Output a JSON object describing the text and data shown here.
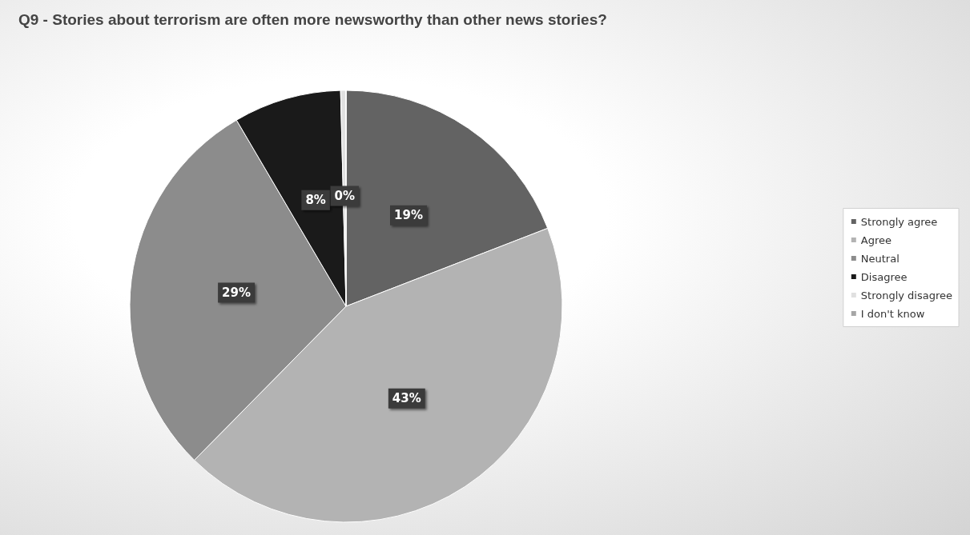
{
  "chart_data": {
    "type": "pie",
    "title": "Q9 - Stories about terrorism are often more newsworthy than other news stories?",
    "categories": [
      "Strongly agree",
      "Agree",
      "Neutral",
      "Disagree",
      "Strongly disagree",
      "I don't know"
    ],
    "values": [
      19,
      43,
      29,
      8,
      0.4,
      0
    ],
    "value_labels": [
      "19%",
      "43%",
      "29%",
      "8%",
      "0%",
      null
    ],
    "colors": [
      "#636363",
      "#b3b3b3",
      "#8c8c8c",
      "#1a1a1a",
      "#e0e0e0",
      "#a6a6a6"
    ],
    "legend": "right"
  }
}
